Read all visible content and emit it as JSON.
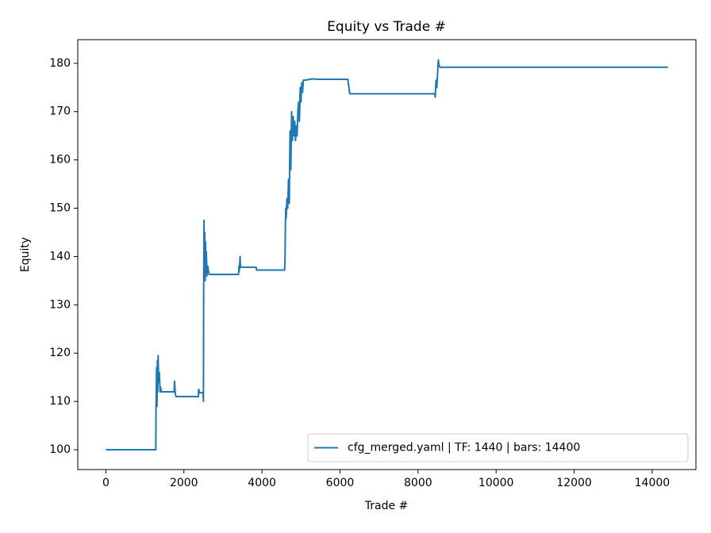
{
  "chart_data": {
    "type": "line",
    "title": "Equity vs Trade #",
    "xlabel": "Trade #",
    "ylabel": "Equity",
    "x": [
      0,
      1280,
      1285,
      1300,
      1310,
      1320,
      1330,
      1340,
      1350,
      1370,
      1390,
      1400,
      1420,
      1750,
      1760,
      1780,
      1800,
      2370,
      2380,
      2400,
      2410,
      2490,
      2500,
      2505,
      2515,
      2525,
      2535,
      2545,
      2555,
      2565,
      2575,
      2590,
      2610,
      2630,
      2650,
      3400,
      3410,
      3420,
      3440,
      3450,
      3460,
      3850,
      3860,
      4580,
      4590,
      4600,
      4610,
      4620,
      4640,
      4660,
      4680,
      4700,
      4720,
      4740,
      4760,
      4780,
      4800,
      4820,
      4840,
      4860,
      4880,
      4900,
      4920,
      4940,
      4960,
      4980,
      5000,
      5020,
      5040,
      5060,
      5100,
      5300,
      5400,
      6200,
      6250,
      8430,
      8440,
      8460,
      8480,
      8500,
      8520,
      8540,
      8560,
      8600,
      14400
    ],
    "series": [
      {
        "name": "cfg_merged.yaml | TF: 1440 | bars: 14400",
        "color": "#1f77b4",
        "values": [
          100,
          100,
          108,
          117,
          109,
          118.5,
          112,
          119.5,
          114,
          116,
          112,
          113,
          112,
          112,
          114.2,
          111.5,
          111,
          111,
          112.5,
          111.8,
          111.8,
          111.8,
          110,
          130,
          147.5,
          136,
          145,
          135,
          143,
          137,
          141,
          136,
          138,
          137,
          136.3,
          136.3,
          138,
          137,
          140,
          137.8,
          137.8,
          137.8,
          137.2,
          137.2,
          139,
          146,
          150,
          148,
          152,
          150,
          156,
          151,
          166,
          158,
          170,
          164,
          169,
          165,
          168,
          164,
          167,
          165,
          170,
          172,
          168,
          175,
          172,
          176,
          174,
          176.5,
          176.5,
          176.8,
          176.7,
          176.7,
          173.7,
          173.7,
          173,
          176.5,
          175,
          178,
          180.7,
          179.5,
          179.2,
          179.2,
          179.2
        ]
      }
    ],
    "xlim": [
      -720,
      15120
    ],
    "ylim": [
      95.9,
      184.9
    ],
    "xticks": [
      0,
      2000,
      4000,
      6000,
      8000,
      10000,
      12000,
      14000
    ],
    "yticks": [
      100,
      110,
      120,
      130,
      140,
      150,
      160,
      170,
      180
    ],
    "grid": false,
    "legend": "lower right"
  }
}
